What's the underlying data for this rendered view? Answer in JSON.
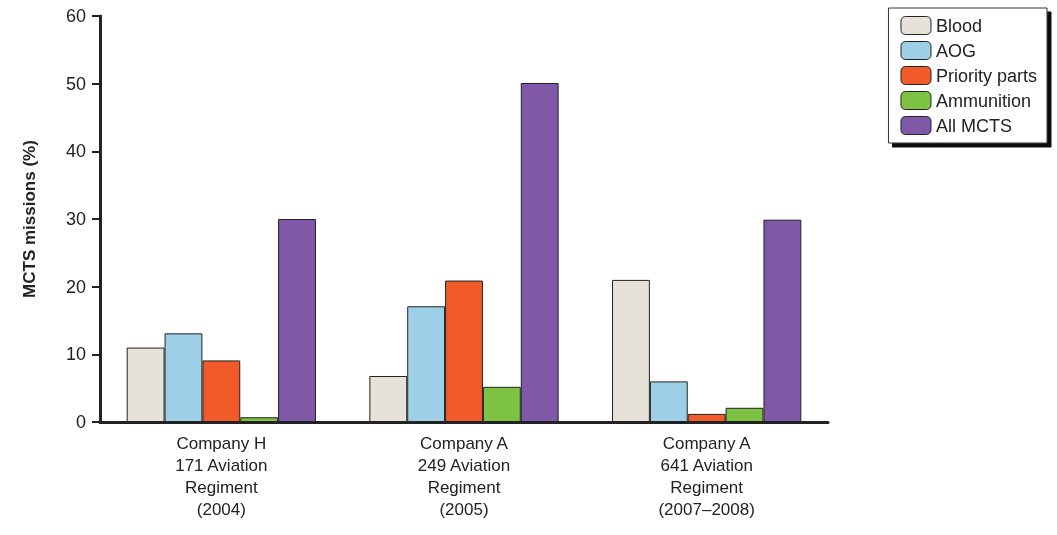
{
  "chart_data": {
    "type": "bar",
    "ylabel": "MCTS missions (%)",
    "categories": [
      "Company H\n171 Aviation\nRegiment\n(2004)",
      "Company A\n249 Aviation\nRegiment\n(2005)",
      "Company A\n641 Aviation\nRegiment\n(2007–2008)"
    ],
    "series": [
      {
        "name": "Blood",
        "color": "#e6e2d9",
        "values": [
          11,
          6.8,
          21
        ]
      },
      {
        "name": "AOG",
        "color": "#9dcfe6",
        "values": [
          13.1,
          17.1,
          6
        ]
      },
      {
        "name": "Priority parts",
        "color": "#f15a29",
        "values": [
          9.1,
          20.9,
          1.2
        ]
      },
      {
        "name": "Ammunition",
        "color": "#7dc242",
        "values": [
          0.7,
          5.2,
          2.1
        ]
      },
      {
        "name": "All MCTS",
        "color": "#7f58a8",
        "values": [
          30,
          50.1,
          29.9
        ]
      }
    ],
    "ylim": [
      0,
      60
    ],
    "yticks": [
      0,
      10,
      20,
      30,
      40,
      50,
      60
    ],
    "grid": false,
    "legend": "top right"
  }
}
